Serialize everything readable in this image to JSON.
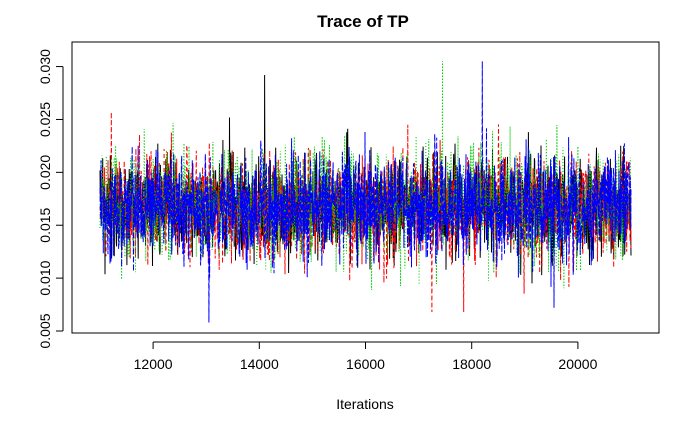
{
  "chart_data": {
    "type": "line",
    "title": "Trace of TP",
    "xlabel": "Iterations",
    "ylabel": "",
    "xlim": [
      11000,
      21000
    ],
    "ylim": [
      0.005,
      0.031
    ],
    "x_ticks": [
      12000,
      14000,
      16000,
      18000,
      20000
    ],
    "x_tick_labels": [
      "12000",
      "14000",
      "16000",
      "18000",
      "20000"
    ],
    "y_ticks": [
      0.005,
      0.01,
      0.015,
      0.02,
      0.025,
      0.03
    ],
    "y_tick_labels": [
      "0.005",
      "0.010",
      "0.015",
      "0.020",
      "0.025",
      "0.030"
    ],
    "grid": false,
    "series": [
      {
        "color": "#000000",
        "dash": "",
        "center": 0.0168,
        "sd": 0.0024,
        "min": 0.0083,
        "max": 0.0292
      },
      {
        "color": "#ff0000",
        "dash": "4,3",
        "center": 0.0167,
        "sd": 0.0024,
        "min": 0.0066,
        "max": 0.0285
      },
      {
        "color": "#00cc00",
        "dash": "1,2",
        "center": 0.0168,
        "sd": 0.0025,
        "min": 0.0075,
        "max": 0.0305
      },
      {
        "color": "#0000ff",
        "dash": "6,2",
        "center": 0.0167,
        "sd": 0.0024,
        "min": 0.0058,
        "max": 0.0305
      }
    ],
    "notable_points": [
      {
        "series": 0,
        "x": 14100,
        "y": 0.0292
      },
      {
        "series": 2,
        "x": 17450,
        "y": 0.0305
      },
      {
        "series": 3,
        "x": 18200,
        "y": 0.0305
      },
      {
        "series": 3,
        "x": 13050,
        "y": 0.0058
      },
      {
        "series": 1,
        "x": 17250,
        "y": 0.0068
      },
      {
        "series": 1,
        "x": 17850,
        "y": 0.0068
      },
      {
        "series": 3,
        "x": 19550,
        "y": 0.0072
      }
    ]
  }
}
